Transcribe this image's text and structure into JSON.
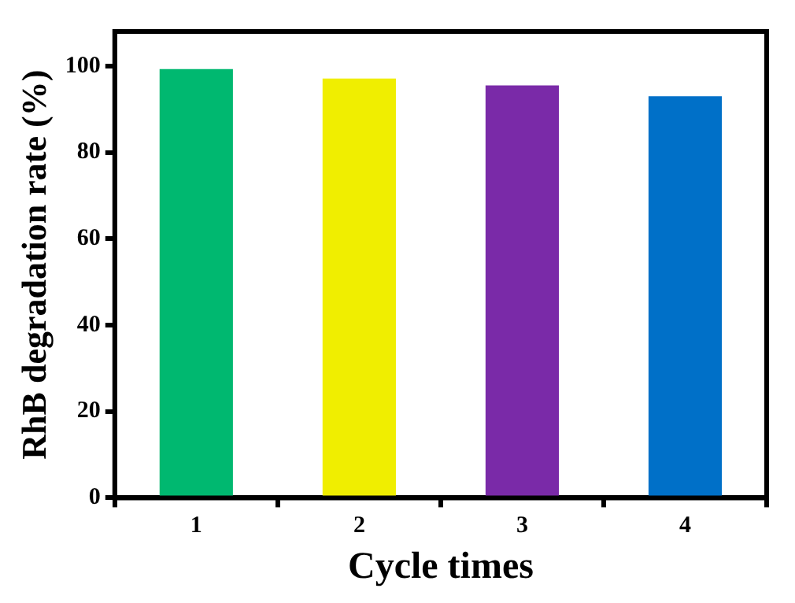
{
  "chart_data": {
    "type": "bar",
    "xlabel": "Cycle times",
    "ylabel": "RhB degradation rate (%)",
    "categories": [
      "1",
      "2",
      "3",
      "4"
    ],
    "values": [
      99.3,
      97.1,
      95.5,
      93.0
    ],
    "colors": [
      "#00b870",
      "#f0ee00",
      "#7a2aa8",
      "#0070c8"
    ],
    "ylim": [
      0,
      108
    ],
    "yticks": [
      0,
      20,
      40,
      60,
      80,
      100
    ],
    "grid": false,
    "legend": false
  }
}
